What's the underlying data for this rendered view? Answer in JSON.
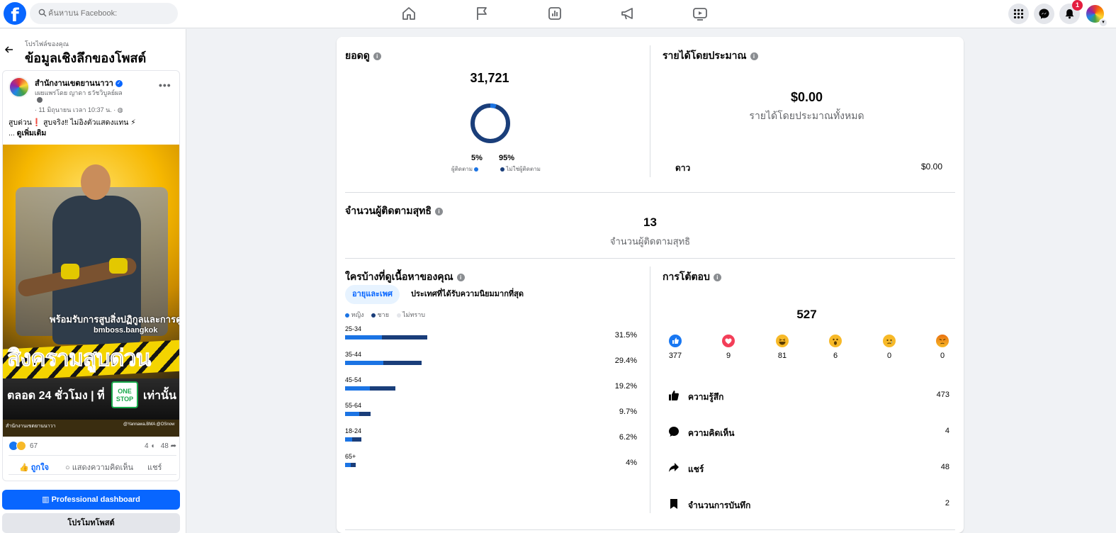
{
  "topbar": {
    "logo": "f",
    "search_placeholder": "ค้นหาบน Facebook:",
    "nav_icons": [
      "home-icon",
      "flag-icon",
      "insights-icon",
      "megaphone-icon",
      "video-icon"
    ],
    "notification_count": "1"
  },
  "left_panel": {
    "breadcrumb": "โปรไฟล์ของคุณ",
    "title": "ข้อมูลเชิงลึกของโพสต์",
    "post": {
      "page_name": "สำนักงานเขตยานนาวา",
      "byline": "เผยแพร่โดย ญาดา ธวัชวิบูลย์ผล",
      "date": "· 11 มิถุนายน เวลา 10:37 น. ·",
      "text_line1": "สูบด่วน❗ สูบจริง‼ ไม่อิงตัวแสดงแทน ⚡",
      "text_line2_prefix": "... ",
      "see_more": "ดูเพิ่มเติม",
      "image": {
        "tagline": "พร้อมรับการสูบสิ่งปฏิกูลและการดูดไข",
        "tagline2": "bmboss.bangkok",
        "headline": "สิงครามสูบด่วน",
        "hours": "ตลอด 24 ชั่วโมง | ที่",
        "badge": "ONE STOP",
        "only": "เท่านั้น",
        "footer_left": "สำนักงานเขตยานนาวา",
        "footer_right": "@Yannawa.BMA @OSnow"
      },
      "reaction_count": "67",
      "comment_count": "4",
      "share_count": "48",
      "like_label": "ถูกใจ",
      "comment_label": "แสดงความคิดเห็น",
      "share_label": "แชร์"
    },
    "pro_dashboard_label": "Professional dashboard",
    "promote_label": "โปรโมทโพสต์"
  },
  "views": {
    "title": "ยอดดู",
    "total": "31,721",
    "followers_pct": "5%",
    "non_followers_pct": "95%",
    "followers_label": "ผู้ติดตาม",
    "non_followers_label": "ไม่ใช่ผู้ติดตาม",
    "followers_fraction": 0.05
  },
  "earnings": {
    "title": "รายได้โดยประมาณ",
    "total": "$0.00",
    "total_label": "รายได้โดยประมาณทั้งหมด",
    "stars_label": "ดาว",
    "stars_value": "$0.00"
  },
  "net_followers": {
    "title": "จำนวนผู้ติดตามสุทธิ",
    "total": "13",
    "label": "จำนวนผู้ติดตามสุทธิ"
  },
  "audience": {
    "title": "ใครบ้างที่ดูเนื้อหาของคุณ",
    "tab_active": "อายุและเพศ",
    "tab_inactive": "ประเทศที่ได้รับความนิยมมากที่สุด",
    "legend": [
      "หญิง",
      "ชาย",
      "ไม่ทราบ"
    ],
    "rows": [
      {
        "age": "25-34",
        "pct": "31.5%",
        "value": 31.5,
        "female_share": 0.45
      },
      {
        "age": "35-44",
        "pct": "29.4%",
        "value": 29.4,
        "female_share": 0.5
      },
      {
        "age": "45-54",
        "pct": "19.2%",
        "value": 19.2,
        "female_share": 0.5
      },
      {
        "age": "55-64",
        "pct": "9.7%",
        "value": 9.7,
        "female_share": 0.55
      },
      {
        "age": "18-24",
        "pct": "6.2%",
        "value": 6.2,
        "female_share": 0.45
      },
      {
        "age": "65+",
        "pct": "4%",
        "value": 4,
        "female_share": 0.55
      }
    ]
  },
  "engagement": {
    "title": "การโต้ตอบ",
    "total": "527",
    "reactions": [
      {
        "name": "like-reaction-icon",
        "count": "377",
        "color": "#1877f2"
      },
      {
        "name": "love-reaction-icon",
        "count": "9",
        "color": "#f33e58"
      },
      {
        "name": "haha-reaction-icon",
        "count": "81",
        "color": "#f7b928"
      },
      {
        "name": "wow-reaction-icon",
        "count": "6",
        "color": "#f7b928"
      },
      {
        "name": "sad-reaction-icon",
        "count": "0",
        "color": "#f7b928"
      },
      {
        "name": "angry-reaction-icon",
        "count": "0",
        "color": "#e9710f"
      }
    ],
    "rows": [
      {
        "icon": "thumbs-up-icon",
        "label": "ความรู้สึก",
        "value": "473"
      },
      {
        "icon": "comment-bubble-icon",
        "label": "ความคิดเห็น",
        "value": "4"
      },
      {
        "icon": "share-arrow-icon",
        "label": "แชร์",
        "value": "48"
      },
      {
        "icon": "bookmark-icon",
        "label": "จำนวนการบันทึก",
        "value": "2"
      }
    ]
  },
  "colors": {
    "brand_blue": "#0866ff",
    "female_bar": "#1b74e4",
    "male_bar": "#1a3e7a",
    "non_follower": "#1a3e7a"
  }
}
